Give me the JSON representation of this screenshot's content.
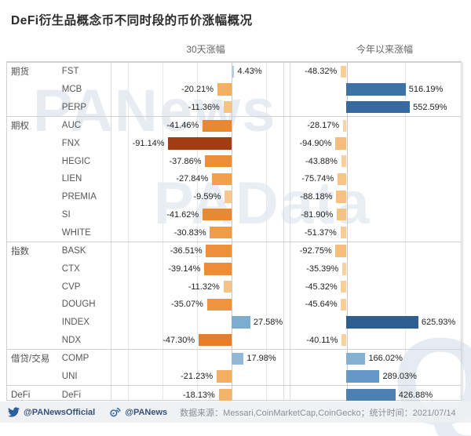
{
  "title": "DeFi衍生品概念币不同时段的币价涨幅概况",
  "watermarks": {
    "top": "PANews",
    "middle": "PAData",
    "corner": "Q"
  },
  "chart_data": {
    "type": "bar",
    "title": "DeFi衍生品概念币不同时段的币价涨幅概况",
    "orientation": "horizontal",
    "panes": [
      {
        "key": "d30",
        "label": "30天涨幅",
        "xmin": -175,
        "xmax": 75,
        "grid_step": 50,
        "unit": "%"
      },
      {
        "key": "ytd",
        "label": "今年以来涨幅",
        "xmin": -500,
        "xmax": 1000,
        "grid_step": 500,
        "unit": "%"
      }
    ],
    "groups": [
      {
        "category": "期货",
        "rows": [
          {
            "coin": "FST",
            "d30": 4.43,
            "d30_label": "4.43%",
            "ytd": -48.32,
            "ytd_label": "-48.32%"
          },
          {
            "coin": "MCB",
            "d30": -20.21,
            "d30_label": "-20.21%",
            "ytd": 516.19,
            "ytd_label": "516.19%"
          },
          {
            "coin": "PERP",
            "d30": -11.36,
            "d30_label": "-11.36%",
            "ytd": 552.59,
            "ytd_label": "552.59%"
          }
        ]
      },
      {
        "category": "期权",
        "rows": [
          {
            "coin": "AUC",
            "d30": -41.46,
            "d30_label": "-41.46%",
            "ytd": -28.17,
            "ytd_label": "-28.17%"
          },
          {
            "coin": "FNX",
            "d30": -91.14,
            "d30_label": "-91.14%",
            "ytd": -94.9,
            "ytd_label": "-94.90%"
          },
          {
            "coin": "HEGIC",
            "d30": -37.86,
            "d30_label": "-37.86%",
            "ytd": -43.88,
            "ytd_label": "-43.88%"
          },
          {
            "coin": "LIEN",
            "d30": -27.84,
            "d30_label": "-27.84%",
            "ytd": -75.74,
            "ytd_label": "-75.74%"
          },
          {
            "coin": "PREMIA",
            "d30": -9.59,
            "d30_label": "-9.59%",
            "ytd": -88.18,
            "ytd_label": "-88.18%"
          },
          {
            "coin": "SI",
            "d30": -41.62,
            "d30_label": "-41.62%",
            "ytd": -81.9,
            "ytd_label": "-81.90%"
          },
          {
            "coin": "WHITE",
            "d30": -30.83,
            "d30_label": "-30.83%",
            "ytd": -51.37,
            "ytd_label": "-51.37%"
          }
        ]
      },
      {
        "category": "指数",
        "rows": [
          {
            "coin": "BASK",
            "d30": -36.51,
            "d30_label": "-36.51%",
            "ytd": -92.75,
            "ytd_label": "-92.75%"
          },
          {
            "coin": "CTX",
            "d30": -39.14,
            "d30_label": "-39.14%",
            "ytd": -35.39,
            "ytd_label": "-35.39%"
          },
          {
            "coin": "CVP",
            "d30": -11.32,
            "d30_label": "-11.32%",
            "ytd": -45.32,
            "ytd_label": "-45.32%"
          },
          {
            "coin": "DOUGH",
            "d30": -35.07,
            "d30_label": "-35.07%",
            "ytd": -45.64,
            "ytd_label": "-45.64%"
          },
          {
            "coin": "INDEX",
            "d30": 27.58,
            "d30_label": "27.58%",
            "ytd": 625.93,
            "ytd_label": "625.93%"
          },
          {
            "coin": "NDX",
            "d30": -47.3,
            "d30_label": "-47.30%",
            "ytd": -40.11,
            "ytd_label": "-40.11%"
          }
        ]
      },
      {
        "category": "借贷/交易",
        "rows": [
          {
            "coin": "COMP",
            "d30": 17.98,
            "d30_label": "17.98%",
            "ytd": 166.02,
            "ytd_label": "166.02%"
          },
          {
            "coin": "UNI",
            "d30": -21.23,
            "d30_label": "-21.23%",
            "ytd": 289.03,
            "ytd_label": "289.03%"
          }
        ]
      },
      {
        "category": "DeFi",
        "rows": [
          {
            "coin": "DeFi",
            "d30": -18.13,
            "d30_label": "-18.13%",
            "ytd": 426.88,
            "ytd_label": "426.88%"
          }
        ]
      }
    ],
    "palette": {
      "positive_stops": [
        [
          0,
          "#c8d6e0"
        ],
        [
          0.1,
          "#a6c4da"
        ],
        [
          0.3,
          "#7dacd1"
        ],
        [
          0.5,
          "#5f93c3"
        ],
        [
          0.7,
          "#4b7fb1"
        ],
        [
          0.85,
          "#3a6fa3"
        ],
        [
          1,
          "#2e5f90"
        ]
      ],
      "negative_stops": [
        [
          0,
          "#f9ddb5"
        ],
        [
          0.1,
          "#f7c98c"
        ],
        [
          0.2,
          "#f5b269"
        ],
        [
          0.35,
          "#f09a43"
        ],
        [
          0.5,
          "#e8802a"
        ],
        [
          0.65,
          "#dd6a1c"
        ],
        [
          0.8,
          "#c65414"
        ],
        [
          1,
          "#a03d11"
        ]
      ],
      "gridline": "#e7e8ea",
      "zero_axis": "#c7c9cc",
      "border": "#cfd1d4"
    }
  },
  "footer": {
    "twitter_handle": "@PANewsOfficial",
    "weibo_handle": "@PANews",
    "source_text": "数据来源：Messari,CoinMarketCap,CoinGecko；统计时间：2021/07/14"
  }
}
